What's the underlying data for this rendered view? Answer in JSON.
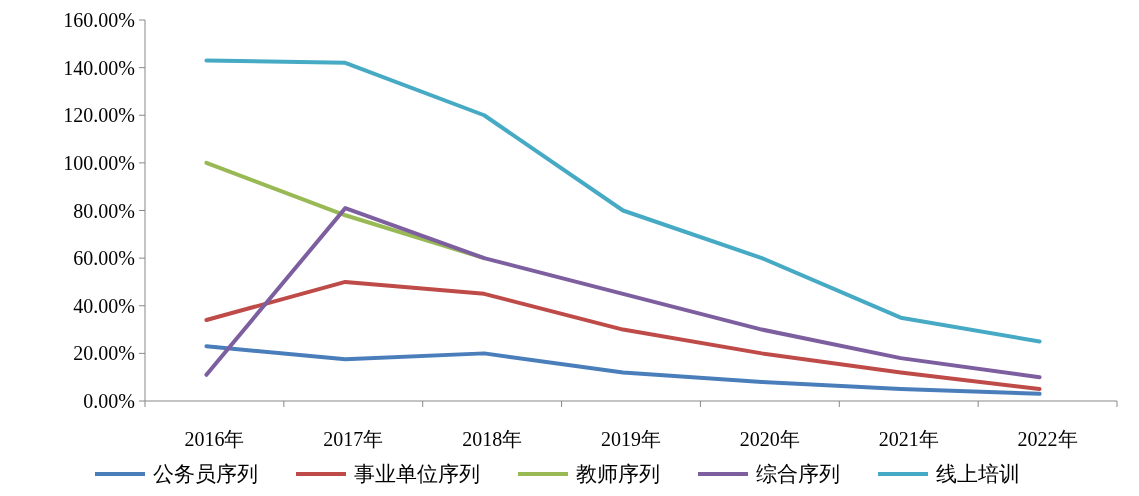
{
  "chart_data": {
    "type": "line",
    "categories": [
      "2016年",
      "2017年",
      "2018年",
      "2019年",
      "2020年",
      "2021年",
      "2022年"
    ],
    "series": [
      {
        "name": "公务员序列",
        "color": "#4a7ebb",
        "values": [
          23,
          17.5,
          20,
          12,
          8,
          5,
          3
        ]
      },
      {
        "name": "事业单位序列",
        "color": "#be4b48",
        "values": [
          34,
          50,
          45,
          30,
          20,
          12,
          5
        ]
      },
      {
        "name": "教师序列",
        "color": "#98b954",
        "values": [
          100,
          78,
          60,
          null,
          null,
          null,
          null
        ]
      },
      {
        "name": "综合序列",
        "color": "#7d5fa0",
        "values": [
          11,
          81,
          60,
          45,
          30,
          18,
          10
        ]
      },
      {
        "name": "线上培训",
        "color": "#46aac5",
        "values": [
          143,
          142,
          120,
          80,
          60,
          35,
          25
        ]
      }
    ],
    "ylim": [
      0,
      160
    ],
    "yticks": [
      {
        "value": 0,
        "label": "0.00%"
      },
      {
        "value": 20,
        "label": "20.00%"
      },
      {
        "value": 40,
        "label": "40.00%"
      },
      {
        "value": 60,
        "label": "60.00%"
      },
      {
        "value": 80,
        "label": "80.00%"
      },
      {
        "value": 100,
        "label": "100.00%"
      },
      {
        "value": 120,
        "label": "120.00%"
      },
      {
        "value": 140,
        "label": "140.00%"
      },
      {
        "value": 160,
        "label": "160.00%"
      }
    ],
    "legend": "bottom"
  }
}
